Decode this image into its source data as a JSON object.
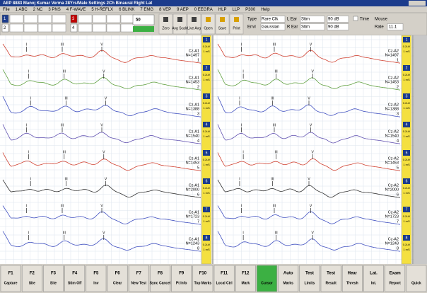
{
  "title_bar": "AEP 8883   Manoj Kumar Verma   28Yrs/Male    Settings   2Ch Binaural Right Lat",
  "menu": [
    "File",
    "1 ABC",
    "2 NC",
    "3 PNS",
    "4 F-WAVE",
    "5 H-REFLX",
    "6 BLINK",
    "7 EMG",
    "8 VEP",
    "9 AEP",
    "0 EEGRA",
    "HLP",
    "LLP",
    "P300",
    "Help"
  ],
  "toolbar": {
    "channels": [
      "1",
      "2",
      "3",
      "4"
    ],
    "level": "50",
    "buttons": [
      "Zero",
      "Avg Scale",
      "Live Avg",
      "Open",
      "Save",
      "Print"
    ],
    "settings": [
      [
        "Type",
        "Rare Clk",
        "L Ear",
        "Stim",
        "90 dB"
      ],
      [
        "Envl",
        "Gaussian",
        "R Ear",
        "Stim",
        "90 dB"
      ]
    ],
    "time_label": "Time",
    "time_value": "Mouse",
    "rate_label": "Rate",
    "rate_value": "11.1"
  },
  "peak_labels": [
    "I",
    "III",
    "V"
  ],
  "scale": [
    "0.2uV",
    "1 mS"
  ],
  "panels": [
    {
      "site": "Cz-A1",
      "traces": [
        {
          "count": "N=1497",
          "number": "1"
        },
        {
          "count": "N=1453",
          "number": "2"
        },
        {
          "count": "N=1388",
          "number": "3"
        },
        {
          "count": "N=1540",
          "number": "4"
        },
        {
          "count": "N=1453",
          "number": "5"
        },
        {
          "count": "N=2000",
          "number": "6"
        },
        {
          "count": "N=1723",
          "number": "7"
        },
        {
          "count": "N=1243",
          "number": "8"
        }
      ]
    },
    {
      "site": "Cz-A2",
      "traces": [
        {
          "count": "N=1497",
          "number": "1"
        },
        {
          "count": "N=1453",
          "number": "2"
        },
        {
          "count": "N=1388",
          "number": "3"
        },
        {
          "count": "N=1540",
          "number": "4"
        },
        {
          "count": "N=1453",
          "number": "5"
        },
        {
          "count": "N=2000",
          "number": "6"
        },
        {
          "count": "N=1723",
          "number": "7"
        },
        {
          "count": "N=1243",
          "number": "8"
        }
      ]
    }
  ],
  "function_keys": [
    {
      "key": "F1",
      "label": "Capture"
    },
    {
      "key": "F2",
      "label": "Site"
    },
    {
      "key": "F3",
      "label": "Site"
    },
    {
      "key": "F4",
      "label": "Stim Off"
    },
    {
      "key": "F5",
      "label": "Inv"
    },
    {
      "key": "F6",
      "label": "Clear"
    },
    {
      "key": "F7",
      "label": "New Test"
    },
    {
      "key": "F8",
      "label": "Sync Cancel"
    },
    {
      "key": "F9",
      "label": "Pt Info"
    },
    {
      "key": "F10",
      "label": "Top Marks"
    },
    {
      "key": "F11",
      "label": "Local Ctrl"
    },
    {
      "key": "F12",
      "label": "Mark"
    },
    {
      "key": "",
      "label": "Cursor"
    },
    {
      "key": "Auto",
      "label": "Marks"
    },
    {
      "key": "Test",
      "label": "Limits"
    },
    {
      "key": "Test",
      "label": "Result"
    },
    {
      "key": "Hear",
      "label": "Thresh"
    },
    {
      "key": "Lat.",
      "label": "Int."
    },
    {
      "key": "Exam",
      "label": "Report"
    },
    {
      "key": "",
      "label": "Quick"
    }
  ]
}
